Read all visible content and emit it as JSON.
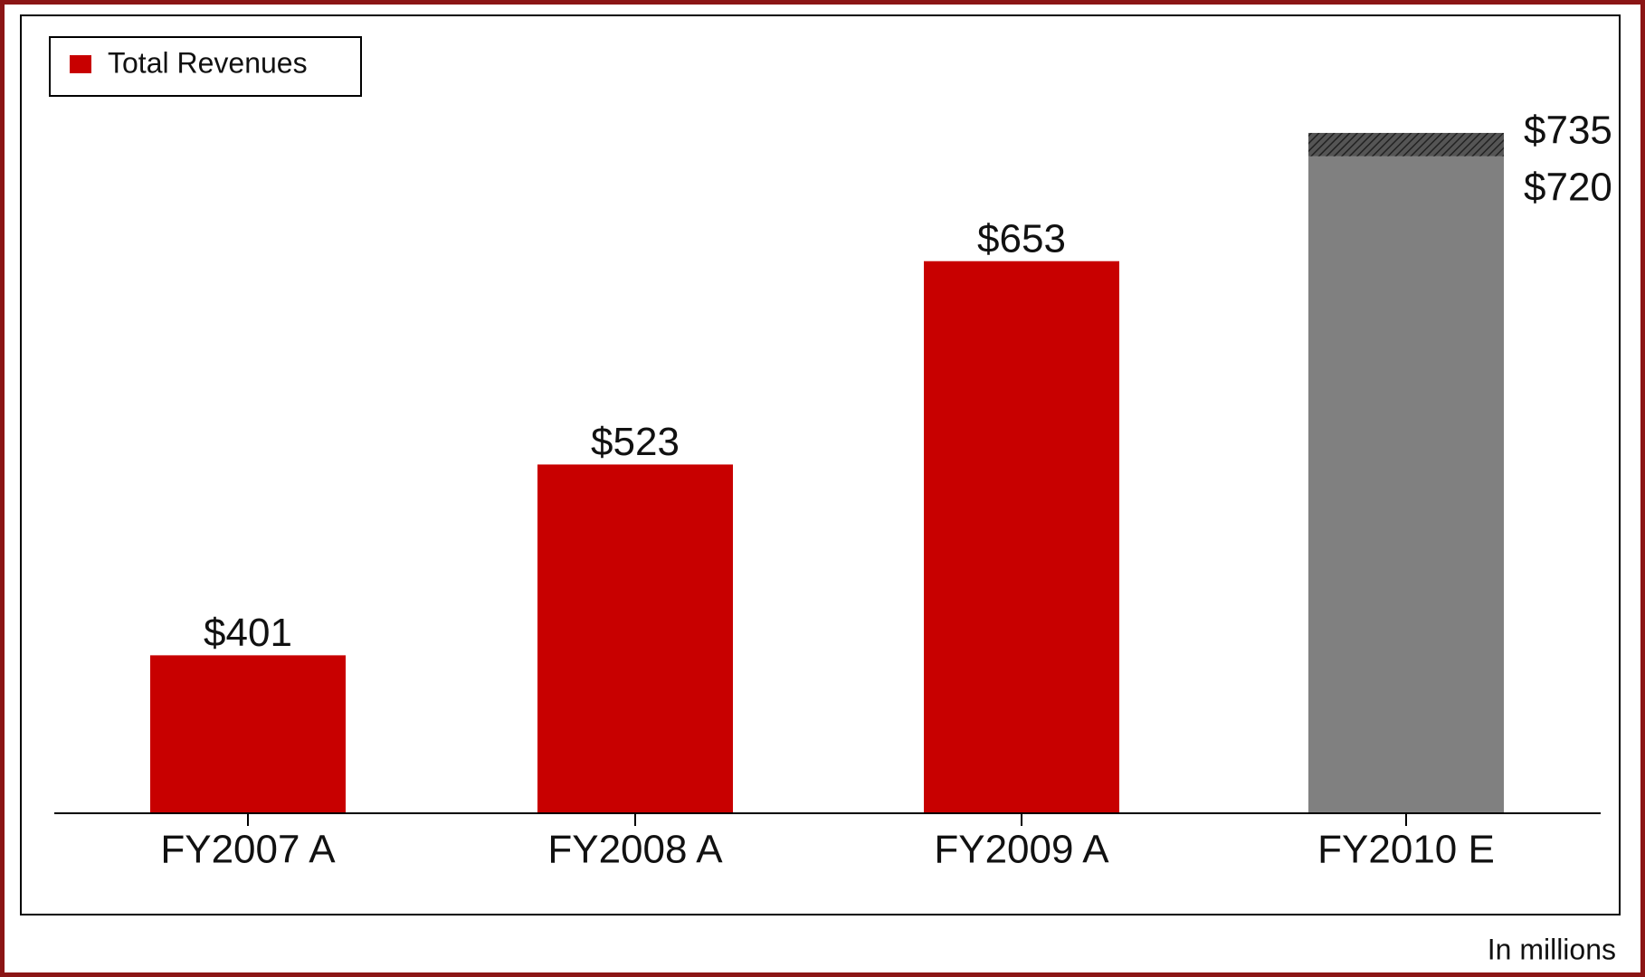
{
  "chart_data": {
    "type": "bar",
    "categories": [
      "FY2007 A",
      "FY2008 A",
      "FY2009 A",
      "FY2010 E"
    ],
    "series": [
      {
        "name": "Total Revenues",
        "color": "#c80000",
        "values": [
          401,
          523,
          653,
          720
        ],
        "value_labels": [
          "$401",
          "$523",
          "$653",
          "$720"
        ],
        "colors": [
          "#c80000",
          "#c80000",
          "#c80000",
          "#808080"
        ]
      }
    ],
    "estimate_high": 735,
    "estimate_high_label": "$735",
    "ylim": [
      300,
      750
    ],
    "note": "In millions",
    "legend": "top-left"
  }
}
